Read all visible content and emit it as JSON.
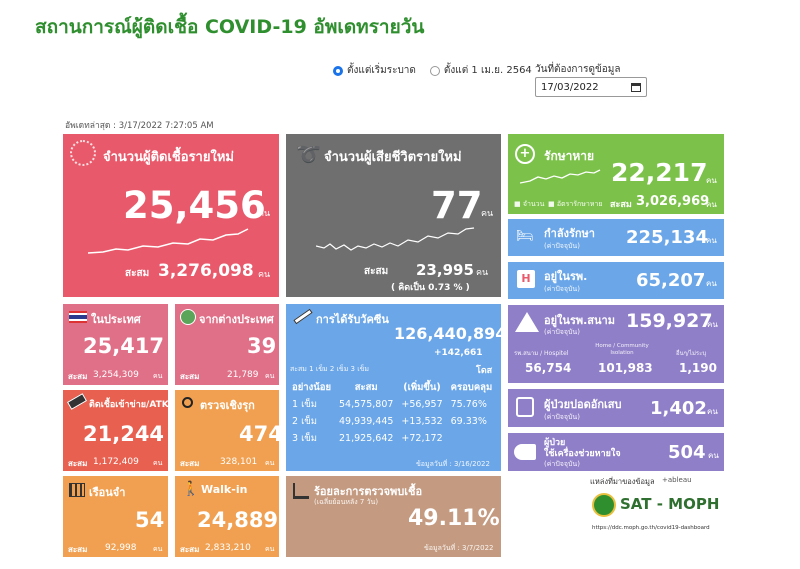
{
  "header": {
    "title": "สถานการณ์ผู้ติดเชื้อ COVID-19 อัพเดทรายวัน"
  },
  "filters": {
    "radio_since_start": "ตั้งแต่เริ่มระบาด",
    "radio_since_date": "ตั้งแต่ 1 เม.ย. 2564",
    "date_label": "วันที่ต้องการดูข้อมูล",
    "date_value": "17/03/2022"
  },
  "updated": "อัพเดทล่าสุด : 3/17/2022 7:27:05 AM",
  "new_cases": {
    "label": "จำนวนผู้ติดเชื้อรายใหม่",
    "value": "25,456",
    "unit": "คน",
    "cum_label": "สะสม",
    "cum_value": "3,276,098",
    "cum_unit": "คน"
  },
  "new_deaths": {
    "label": "จำนวนผู้เสียชีวิตรายใหม่",
    "value": "77",
    "unit": "คน",
    "cum_label": "สะสม",
    "cum_value": "23,995",
    "cum_unit": "คน",
    "rate": "( คิดเป็น      0.73 % )"
  },
  "recovered": {
    "label": "รักษาหาย",
    "value": "22,217",
    "unit": "คน",
    "legend1": "จำนวน",
    "legend2": "อัตรารักษาหาย",
    "cum_label": "สะสม",
    "cum_value": "3,026,969",
    "cum_unit": "คน"
  },
  "treating": {
    "label": "กำลังรักษา",
    "sub": "(ค่าปัจจุบัน)",
    "value": "225,134",
    "unit": "คน"
  },
  "hospital": {
    "label": "อยู่ในรพ.",
    "sub": "(ค่าปัจจุบัน)",
    "value": "65,207",
    "unit": "คน"
  },
  "field_hospital": {
    "label": "อยู่ในรพ.สนาม",
    "sub": "(ค่าปัจจุบัน)",
    "value": "159,927",
    "unit": "คน",
    "col1_label": "รพ.สนาม / Hospitel",
    "col1_value": "56,754",
    "col2_label": "Home / Community Isolation",
    "col2_value": "101,983",
    "col3_label": "อื่นๆ/ไม่ระบุ",
    "col3_value": "1,190"
  },
  "severe": {
    "label": "ผู้ป่วยปอดอักเสบ",
    "sub": "(ค่าปัจจุบัน)",
    "value": "1,402",
    "unit": "คน"
  },
  "ventilator": {
    "label1": "ผู้ป่วย",
    "label2": "ใช้เครื่องช่วยหายใจ",
    "sub": "(ค่าปัจจุบัน)",
    "value": "504",
    "unit": "คน"
  },
  "domestic": {
    "label": "ในประเทศ",
    "value": "25,417",
    "cum_label": "สะสม",
    "cum_value": "3,254,309",
    "unit": "คน"
  },
  "imported": {
    "label": "จากต่างประเทศ",
    "value": "39",
    "cum_label": "สะสม",
    "cum_value": "21,789",
    "unit": "คน"
  },
  "atk": {
    "label": "ติดเชื้อเข้าข่าย/ATK",
    "value": "21,244",
    "cum_label": "สะสม",
    "cum_value": "1,172,409",
    "unit": "คน"
  },
  "active_search": {
    "label": "ตรวจเชิงรุก",
    "value": "474",
    "cum_label": "สะสม",
    "cum_value": "328,101",
    "unit": "คน"
  },
  "prison": {
    "label": "เรือนจำ",
    "value": "54",
    "cum_label": "สะสม",
    "cum_value": "92,998",
    "unit": "คน"
  },
  "walkin": {
    "label": "Walk-in",
    "value": "24,889",
    "cum_label": "สะสม",
    "cum_value": "2,833,210",
    "unit": "คน"
  },
  "vaccine": {
    "label": "การได้รับวัคซีน",
    "total": "126,440,894",
    "today": "+142,661",
    "unit": "โดส",
    "legend": "สะสม  1 เข็ม  2 เข็ม  3 เข็ม",
    "headers": [
      "อย่างน้อย",
      "สะสม",
      "(เพิ่มขึ้น)",
      "ครอบคลุม"
    ],
    "rows": [
      [
        "1 เข็ม",
        "54,575,807",
        "+56,957",
        "75.76%"
      ],
      [
        "2 เข็ม",
        "49,939,445",
        "+13,532",
        "69.33%"
      ],
      [
        "3 เข็ม",
        "21,925,642",
        "+72,172",
        ""
      ]
    ],
    "data_date": "ข้อมูลวันที่ : 3/16/2022"
  },
  "positivity": {
    "label": "ร้อยละการตรวจพบเชื้อ",
    "sub": "(เฉลี่ยย้อนหลัง 7 วัน)",
    "value": "49.11%",
    "data_date": "ข้อมูลวันที่ : 3/7/2022"
  },
  "source": {
    "label": "แหล่งที่มาของข้อมูล",
    "tableau": "+ableau",
    "brand": "SAT - MOPH",
    "url": "https://ddc.moph.go.th/covid19-dashboard"
  },
  "colors": {
    "red": "#e85a6b",
    "gray": "#6f6f6f",
    "green": "#7cc24a",
    "blue": "#6aa6e8",
    "purple": "#8f7ec8",
    "pink": "#e07088",
    "orange": "#f0a050",
    "tan": "#c49a80"
  }
}
